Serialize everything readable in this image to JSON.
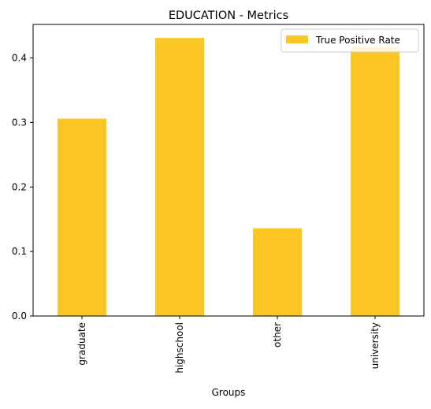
{
  "chart_data": {
    "type": "bar",
    "title": "EDUCATION - Metrics",
    "xlabel": "Groups",
    "ylabel": "",
    "categories": [
      "graduate",
      "highschool",
      "other",
      "university"
    ],
    "series": [
      {
        "name": "True Positive Rate",
        "values": [
          0.306,
          0.431,
          0.136,
          0.416
        ],
        "color": "#fcc624"
      }
    ],
    "ylim": [
      0,
      0.452
    ],
    "yticks": [
      "0.0",
      "0.1",
      "0.2",
      "0.3",
      "0.4"
    ],
    "grid": false,
    "legend_position": "top-right"
  }
}
